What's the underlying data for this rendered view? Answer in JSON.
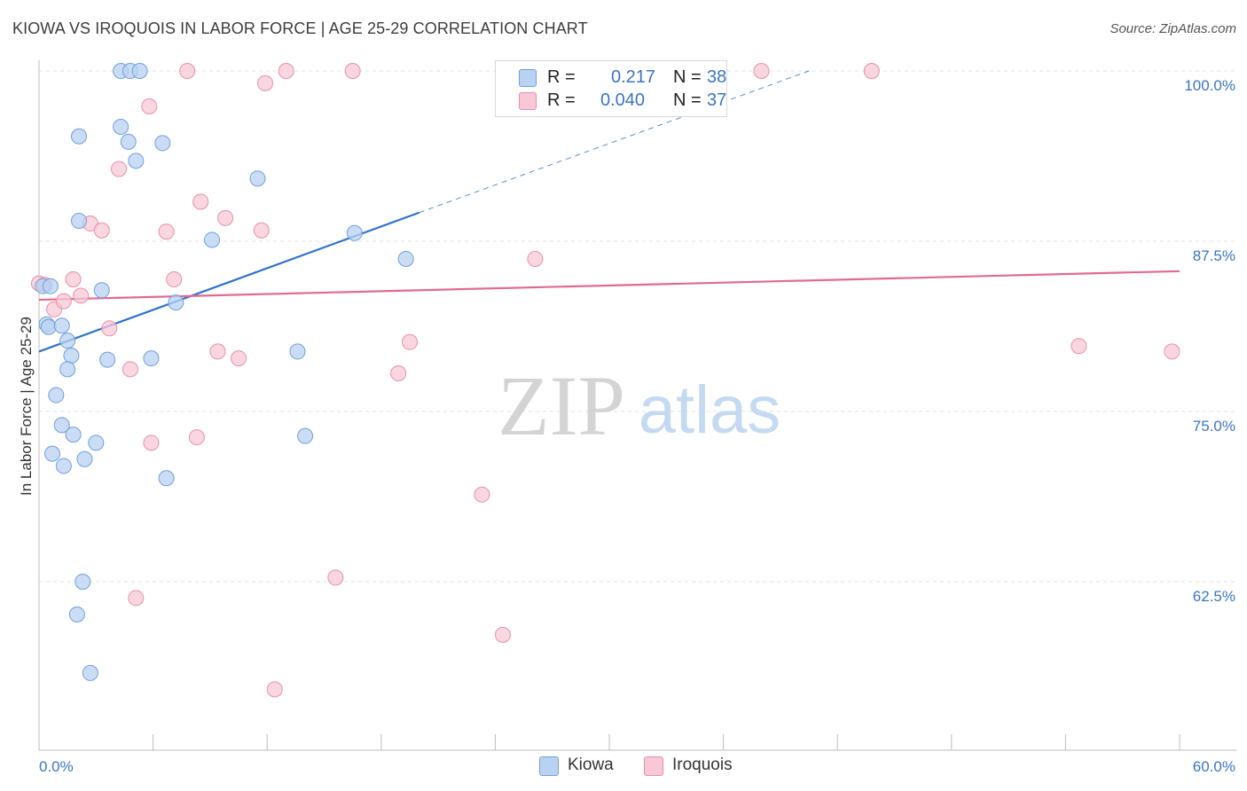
{
  "header": {
    "title": "KIOWA VS IROQUOIS IN LABOR FORCE | AGE 25-29 CORRELATION CHART",
    "source": "Source: ZipAtlas.com"
  },
  "watermark": {
    "zip": "ZIP",
    "atlas": "atlas"
  },
  "legend": {
    "rows": [
      {
        "r_label": "R =",
        "r_value": "0.217",
        "n_label": "N =",
        "n_value": "38"
      },
      {
        "r_label": "R =",
        "r_value": "0.040",
        "n_label": "N =",
        "n_value": "37"
      }
    ]
  },
  "bottom_legend": {
    "kiowa": "Kiowa",
    "iroquois": "Iroquois"
  },
  "colors": {
    "kiowa_fill": "#bad2f2",
    "kiowa_stroke": "#6f9fdc",
    "kiowa_line": "#2f72cc",
    "iroquois_fill": "#f8c8d6",
    "iroquois_stroke": "#e690ab",
    "iroquois_line": "#e06a94",
    "tick_label": "#3a74c4",
    "grid": "#e2e2e2"
  },
  "chart_data": {
    "type": "scatter",
    "title": "KIOWA VS IROQUOIS IN LABOR FORCE | AGE 25-29 CORRELATION CHART",
    "xlabel": "",
    "ylabel": "In Labor Force | Age 25-29",
    "xlim": [
      0,
      60
    ],
    "ylim": [
      50,
      101
    ],
    "x_tick_labels": [
      {
        "value": 0,
        "label": "0.0%"
      },
      {
        "value": 60,
        "label": "60.0%"
      }
    ],
    "y_tick_labels": [
      {
        "value": 100,
        "label": "100.0%"
      },
      {
        "value": 87.5,
        "label": "87.5%"
      },
      {
        "value": 75,
        "label": "75.0%"
      },
      {
        "value": 62.5,
        "label": "62.5%"
      }
    ],
    "series": [
      {
        "name": "Kiowa",
        "r": 0.217,
        "n": 38,
        "points": [
          [
            0.2,
            84.2
          ],
          [
            0.4,
            81.4
          ],
          [
            0.6,
            84.2
          ],
          [
            0.5,
            81.2
          ],
          [
            1.5,
            80.2
          ],
          [
            1.7,
            79.1
          ],
          [
            1.5,
            78.1
          ],
          [
            0.9,
            76.2
          ],
          [
            1.2,
            74.0
          ],
          [
            1.8,
            73.3
          ],
          [
            0.7,
            71.9
          ],
          [
            1.3,
            71.0
          ],
          [
            2.4,
            71.5
          ],
          [
            3.0,
            72.7
          ],
          [
            3.3,
            83.9
          ],
          [
            3.6,
            78.8
          ],
          [
            2.1,
            89.0
          ],
          [
            2.1,
            95.2
          ],
          [
            4.3,
            95.9
          ],
          [
            4.3,
            100.0
          ],
          [
            4.8,
            100.0
          ],
          [
            5.3,
            100.0
          ],
          [
            4.7,
            94.8
          ],
          [
            5.1,
            93.4
          ],
          [
            5.9,
            78.9
          ],
          [
            6.5,
            94.7
          ],
          [
            6.7,
            70.1
          ],
          [
            7.2,
            83.0
          ],
          [
            9.1,
            87.6
          ],
          [
            11.5,
            92.1
          ],
          [
            13.6,
            79.4
          ],
          [
            14.0,
            73.2
          ],
          [
            16.6,
            88.1
          ],
          [
            19.3,
            86.2
          ],
          [
            2.3,
            62.5
          ],
          [
            2.0,
            60.1
          ],
          [
            2.7,
            55.8
          ],
          [
            1.2,
            81.3
          ]
        ],
        "trend": {
          "x_start": 0,
          "y_start": 79.4,
          "x_solid_end": 20,
          "y_solid_end": 89.6,
          "x_end": 40.5,
          "y_end": 100.0
        }
      },
      {
        "name": "Iroquois",
        "r": 0.04,
        "n": 37,
        "points": [
          [
            0.0,
            84.4
          ],
          [
            0.8,
            82.5
          ],
          [
            1.3,
            83.1
          ],
          [
            1.8,
            84.7
          ],
          [
            2.2,
            83.5
          ],
          [
            2.7,
            88.8
          ],
          [
            3.3,
            88.3
          ],
          [
            3.7,
            81.1
          ],
          [
            4.2,
            92.8
          ],
          [
            4.8,
            78.1
          ],
          [
            5.8,
            97.4
          ],
          [
            5.9,
            72.7
          ],
          [
            6.7,
            88.2
          ],
          [
            7.1,
            84.7
          ],
          [
            7.8,
            100.0
          ],
          [
            8.3,
            73.1
          ],
          [
            8.5,
            90.4
          ],
          [
            9.4,
            79.4
          ],
          [
            9.8,
            89.2
          ],
          [
            10.5,
            78.9
          ],
          [
            11.7,
            88.3
          ],
          [
            11.9,
            99.1
          ],
          [
            13.0,
            100.0
          ],
          [
            16.5,
            100.0
          ],
          [
            18.9,
            77.8
          ],
          [
            19.5,
            80.1
          ],
          [
            23.3,
            68.9
          ],
          [
            24.4,
            58.6
          ],
          [
            26.1,
            86.2
          ],
          [
            15.6,
            62.8
          ],
          [
            12.4,
            54.6
          ],
          [
            5.1,
            61.3
          ],
          [
            38.0,
            100.0
          ],
          [
            43.8,
            100.0
          ],
          [
            54.7,
            79.8
          ],
          [
            59.6,
            79.4
          ],
          [
            0.3,
            84.3
          ]
        ],
        "trend": {
          "x_start": 0,
          "y_start": 83.2,
          "x_end": 60,
          "y_end": 85.3
        }
      }
    ]
  }
}
